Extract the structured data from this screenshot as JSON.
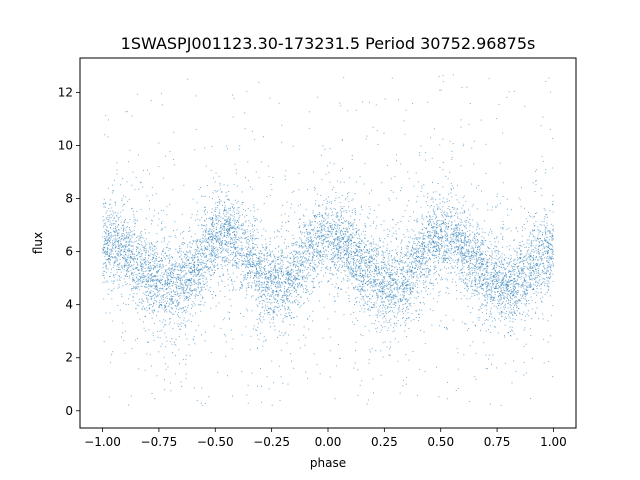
{
  "chart_data": {
    "type": "scatter",
    "title": "1SWASPJ001123.30-173231.5 Period 30752.96875s",
    "xlabel": "phase",
    "ylabel": "flux",
    "xlim": [
      -1.1,
      1.1
    ],
    "ylim": [
      -0.65,
      13.3
    ],
    "xticks": [
      -1.0,
      -0.75,
      -0.5,
      -0.25,
      0.0,
      0.25,
      0.5,
      0.75,
      1.0
    ],
    "xtick_labels": [
      "−1.00",
      "−0.75",
      "−0.50",
      "−0.25",
      "0.00",
      "0.25",
      "0.50",
      "0.75",
      "1.00"
    ],
    "yticks": [
      0,
      2,
      4,
      6,
      8,
      10,
      12
    ],
    "ytick_labels": [
      "0",
      "2",
      "4",
      "6",
      "8",
      "10",
      "12"
    ],
    "grid": false,
    "marker_color": "#1f77b4",
    "series": [
      {
        "phase": [
          -1.0,
          -0.95,
          -0.9,
          -0.85,
          -0.8,
          -0.75,
          -0.7,
          -0.65,
          -0.6,
          -0.55,
          -0.5,
          -0.45,
          -0.4,
          -0.35,
          -0.3,
          -0.25,
          -0.2,
          -0.15,
          -0.1,
          -0.05,
          0.0,
          0.05,
          0.1,
          0.15,
          0.2,
          0.25,
          0.3,
          0.35,
          0.4,
          0.45,
          0.5,
          0.55,
          0.6,
          0.65,
          0.7,
          0.75,
          0.8,
          0.85,
          0.9,
          0.95,
          1.0
        ],
        "flux": [
          6.2,
          6.4,
          6.0,
          5.6,
          5.2,
          4.9,
          4.7,
          4.8,
          5.3,
          5.9,
          6.5,
          6.7,
          6.3,
          5.7,
          5.2,
          4.9,
          4.8,
          5.1,
          5.8,
          6.3,
          6.5,
          6.3,
          6.0,
          5.5,
          5.1,
          4.8,
          4.7,
          5.0,
          5.6,
          6.2,
          6.6,
          6.5,
          6.1,
          5.6,
          5.2,
          4.9,
          4.8,
          5.0,
          5.4,
          5.9,
          6.1
        ]
      }
    ]
  }
}
